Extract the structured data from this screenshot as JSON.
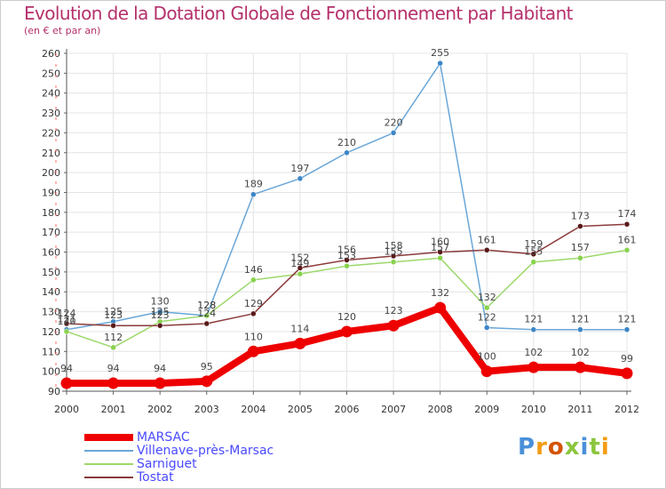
{
  "chart_data": {
    "type": "line",
    "title": "Evolution de la Dotation Globale de Fonctionnement par Habitant",
    "subtitle": "(en € et par an)",
    "x": [
      "2000",
      "2001",
      "2002",
      "2003",
      "2004",
      "2005",
      "2006",
      "2007",
      "2008",
      "2009",
      "2010",
      "2011",
      "2012"
    ],
    "ylim": [
      90,
      260
    ],
    "yticks": [
      90,
      100,
      110,
      120,
      130,
      140,
      150,
      160,
      170,
      180,
      190,
      200,
      210,
      220,
      230,
      240,
      250,
      260
    ],
    "series": [
      {
        "name": "Villenave-près-Marsac",
        "color": "#6aa7d8",
        "marker": "#3c86c7",
        "values": [
          121,
          125,
          130,
          128,
          189,
          197,
          210,
          220,
          255,
          122,
          121,
          121,
          121
        ]
      },
      {
        "name": "Sarniguet",
        "color": "#9cd86a",
        "marker": "#88d24c",
        "values": [
          120,
          112,
          125,
          128,
          146,
          149,
          153,
          155,
          157,
          132,
          155,
          157,
          161
        ]
      },
      {
        "name": "Tostat",
        "color": "#8b3a3a",
        "marker": "#5a1a1a",
        "values": [
          124,
          123,
          123,
          124,
          129,
          152,
          156,
          158,
          160,
          161,
          159,
          173,
          174
        ]
      },
      {
        "name": "MARSAC",
        "color": "#ee0000",
        "marker": "#ee0000",
        "values": [
          94,
          94,
          94,
          95,
          110,
          114,
          120,
          123,
          132,
          100,
          102,
          102,
          99
        ]
      }
    ],
    "data_labels": {
      "Villenave-près-Marsac": [
        "121",
        "125",
        "130",
        "128",
        "189",
        "197",
        "210",
        "220",
        "255",
        "122",
        "121",
        "121",
        "121"
      ],
      "Sarniguet": [
        "120",
        "112",
        "125",
        "128",
        "146",
        "149",
        "153",
        "155",
        "157",
        "132",
        "155",
        "157",
        "161"
      ],
      "Tostat": [
        "124",
        "123",
        "123",
        "124",
        "129",
        "152",
        "156",
        "158",
        "160",
        "161",
        "159",
        "173",
        "174"
      ],
      "MARSAC": [
        "94",
        "94",
        "94",
        "95",
        "110",
        "114",
        "120",
        "123",
        "132",
        "100",
        "102",
        "102",
        "99"
      ]
    }
  },
  "legend": [
    {
      "label": "MARSAC",
      "color": "#ee0000",
      "weight": "thick"
    },
    {
      "label": "Villenave-près-Marsac",
      "color": "#6aa7d8",
      "weight": "thin"
    },
    {
      "label": "Sarniguet",
      "color": "#9cd86a",
      "weight": "thin"
    },
    {
      "label": "Tostat",
      "color": "#8b3a3a",
      "weight": "thin"
    }
  ],
  "logo": {
    "text": "Proxiti"
  }
}
